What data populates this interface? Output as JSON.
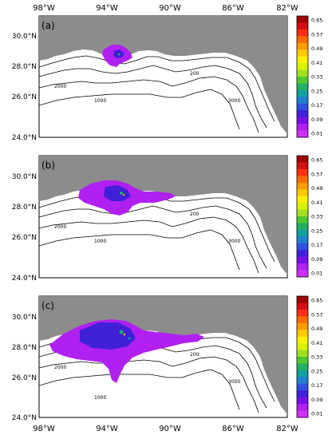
{
  "figure": {
    "top_lon_labels": [
      "98°W",
      "94°W",
      "90°W",
      "86°W",
      "82°W"
    ],
    "bottom_lon_labels": [
      "98°W",
      "94°W",
      "90°W",
      "86°W",
      "82°W"
    ],
    "colorbar_ticks": [
      "0.65",
      "0.57",
      "0.49",
      "0.41",
      "0.33",
      "0.25",
      "0.17",
      "0.09",
      "0.01"
    ],
    "colorbar_colors": [
      "#a00000",
      "#d01010",
      "#ff3010",
      "#ff6a00",
      "#ff9a00",
      "#ffc800",
      "#ffee00",
      "#d8f000",
      "#a0e020",
      "#50c830",
      "#20b060",
      "#10a0a0",
      "#2080d0",
      "#3050e0",
      "#4020d8",
      "#7a10e8",
      "#b020f0",
      "#d030ff"
    ],
    "contour_labels": [
      "1000",
      "200",
      "2000",
      "3000"
    ],
    "land_color": "#8c8c8c"
  },
  "panels": [
    {
      "label": "(a)",
      "lat_labels": [
        "30.0°N",
        "28.0°N",
        "26.0°N",
        "24.0°N"
      ],
      "plume_extent": "small"
    },
    {
      "label": "(b)",
      "lat_labels": [
        "30.0°N",
        "28.0°N",
        "26.0°N",
        "24.0°N"
      ],
      "plume_extent": "medium"
    },
    {
      "label": "(c)",
      "lat_labels": [
        "30.0°N",
        "28.0°N",
        "26.0°N",
        "24.0°N"
      ],
      "plume_extent": "large"
    }
  ]
}
